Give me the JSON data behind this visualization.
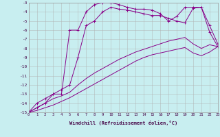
{
  "xlabel": "Windchill (Refroidissement éolien,°C)",
  "background_color": "#c8eef0",
  "grid_color": "#b0b0b0",
  "line_color": "#880088",
  "xlim": [
    0,
    23
  ],
  "ylim": [
    -15,
    -3
  ],
  "xticks": [
    0,
    1,
    2,
    3,
    4,
    5,
    6,
    7,
    8,
    9,
    10,
    11,
    12,
    13,
    14,
    15,
    16,
    17,
    18,
    19,
    20,
    21,
    22,
    23
  ],
  "yticks": [
    -3,
    -4,
    -5,
    -6,
    -7,
    -8,
    -9,
    -10,
    -11,
    -12,
    -13,
    -14,
    -15
  ],
  "line1_x": [
    0,
    1,
    2,
    3,
    4,
    5,
    6,
    7,
    8,
    9,
    10,
    11,
    12,
    13,
    14,
    15,
    16,
    17,
    18,
    19,
    20,
    21,
    22,
    23
  ],
  "line1_y": [
    -15,
    -14.5,
    -14,
    -13,
    -13,
    -6,
    -6,
    -4,
    -3.2,
    -3.0,
    -3.0,
    -3.2,
    -3.5,
    -3.7,
    -3.7,
    -3.8,
    -4.2,
    -5.0,
    -4.5,
    -3.5,
    -3.5,
    -3.5,
    -6.2,
    -7.8
  ],
  "line2_x": [
    0,
    1,
    2,
    3,
    4,
    5,
    6,
    7,
    8,
    9,
    10,
    11,
    12,
    13,
    14,
    15,
    16,
    17,
    18,
    19,
    20,
    21,
    22,
    23
  ],
  "line2_y": [
    -15,
    -14,
    -13.5,
    -13,
    -12.5,
    -12,
    -9,
    -5.5,
    -5.0,
    -4.0,
    -3.5,
    -3.7,
    -3.8,
    -4.0,
    -4.2,
    -4.4,
    -4.4,
    -4.7,
    -5.0,
    -5.2,
    -3.6,
    -3.5,
    -5.5,
    -7.5
  ],
  "line3_x": [
    0,
    1,
    2,
    3,
    4,
    5,
    6,
    7,
    8,
    9,
    10,
    11,
    12,
    13,
    14,
    15,
    16,
    17,
    18,
    19,
    20,
    21,
    22,
    23
  ],
  "line3_y": [
    -15,
    -14.5,
    -14.0,
    -13.5,
    -13.2,
    -12.8,
    -12.0,
    -11.3,
    -10.7,
    -10.2,
    -9.7,
    -9.2,
    -8.8,
    -8.4,
    -8.1,
    -7.8,
    -7.5,
    -7.2,
    -7.0,
    -6.8,
    -7.5,
    -8.0,
    -7.6,
    -7.8
  ],
  "line4_x": [
    0,
    1,
    2,
    3,
    4,
    5,
    6,
    7,
    8,
    9,
    10,
    11,
    12,
    13,
    14,
    15,
    16,
    17,
    18,
    19,
    20,
    21,
    22,
    23
  ],
  "line4_y": [
    -15,
    -14.8,
    -14.5,
    -14.2,
    -13.8,
    -13.4,
    -12.9,
    -12.4,
    -11.9,
    -11.4,
    -10.9,
    -10.4,
    -9.9,
    -9.4,
    -9.0,
    -8.7,
    -8.5,
    -8.3,
    -8.1,
    -7.9,
    -8.5,
    -8.8,
    -8.4,
    -7.8
  ]
}
